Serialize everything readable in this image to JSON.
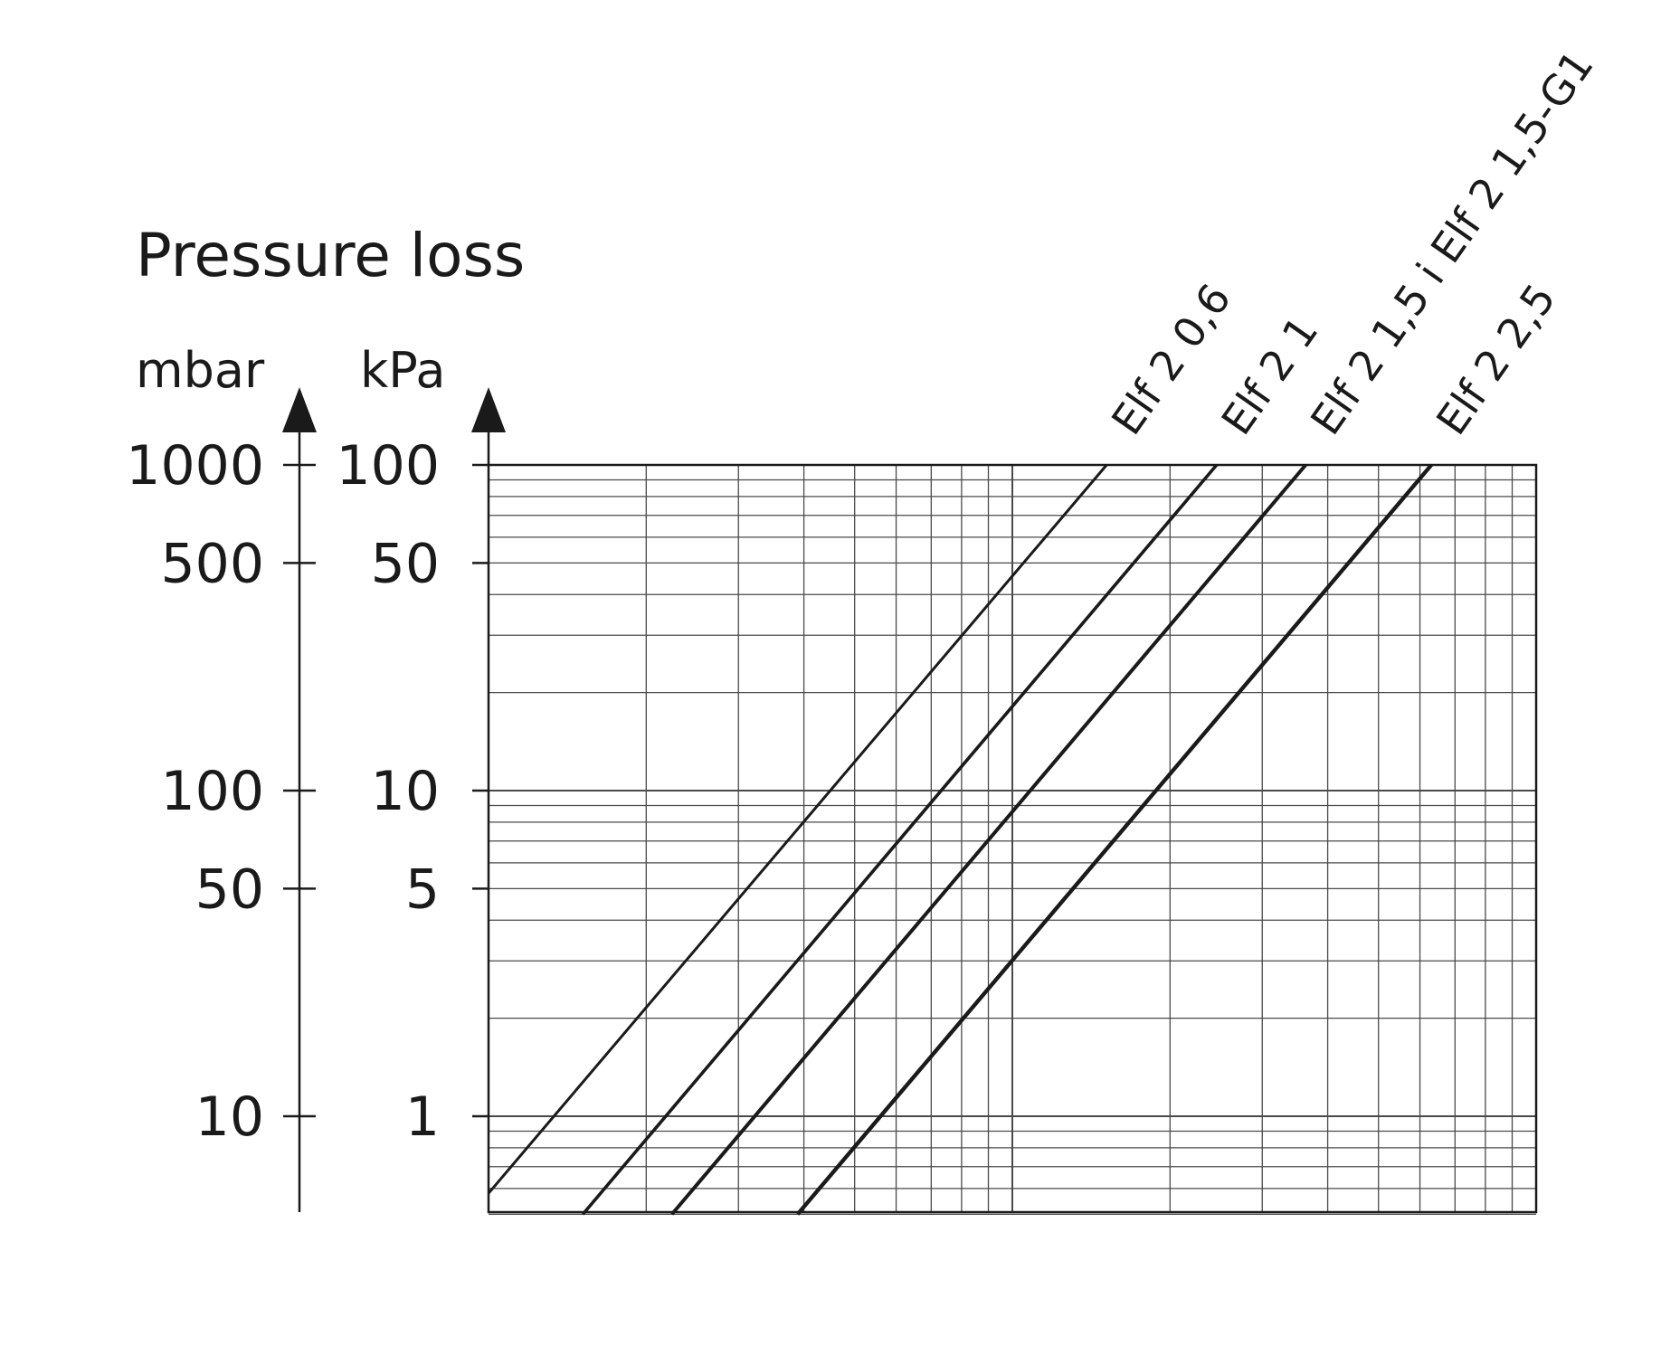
{
  "chart_data": {
    "type": "line",
    "title": "Pressure loss",
    "xlabel": "",
    "x_scale": "log",
    "y_scale": "log",
    "x_decades": 2,
    "y_axis_left": {
      "unit": "mbar",
      "ticks": [
        {
          "label": "1000",
          "value": 1000
        },
        {
          "label": "500",
          "value": 500
        },
        {
          "label": "100",
          "value": 100
        },
        {
          "label": "50",
          "value": 50
        },
        {
          "label": "10",
          "value": 10
        }
      ]
    },
    "y_axis_right": {
      "unit": "kPa",
      "ticks": [
        {
          "label": "100",
          "value": 100
        },
        {
          "label": "50",
          "value": 50
        },
        {
          "label": "10",
          "value": 10
        },
        {
          "label": "5",
          "value": 5
        },
        {
          "label": "1",
          "value": 1
        }
      ]
    },
    "ylim_kPa": [
      0.5,
      100
    ],
    "grid": true,
    "series": [
      {
        "name": "Elf 2 0,6",
        "points": [
          [
            0.0,
            0.58
          ],
          [
            1.18,
            100
          ]
        ]
      },
      {
        "name": "Elf 2 1",
        "points": [
          [
            0.18,
            0.5
          ],
          [
            1.39,
            100
          ]
        ]
      },
      {
        "name": "Elf 2 1,5 i Elf 2 1,5-G1",
        "points": [
          [
            0.35,
            0.5
          ],
          [
            1.56,
            100
          ]
        ]
      },
      {
        "name": "Elf 2 2,5",
        "points": [
          [
            0.59,
            0.5
          ],
          [
            1.8,
            100
          ]
        ]
      }
    ]
  },
  "colors": {
    "ink": "#1a1a1a",
    "grid": "#4a4a4a"
  }
}
